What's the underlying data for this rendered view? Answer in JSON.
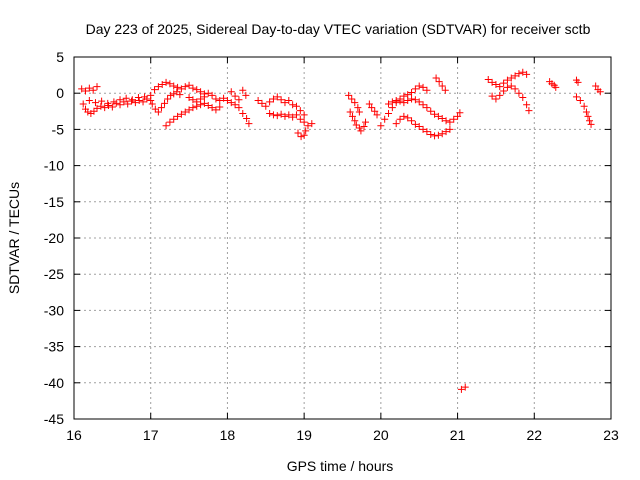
{
  "chart_data": {
    "type": "scatter",
    "title": "Day 223 of 2025, Sidereal Day-to-day VTEC variation (SDTVAR) for receiver sctb",
    "xlabel": "GPS time / hours",
    "ylabel": "SDTVAR / TECUs",
    "xlim": [
      16,
      23
    ],
    "ylim": [
      -45,
      5
    ],
    "xticks": [
      16,
      17,
      18,
      19,
      20,
      21,
      22,
      23
    ],
    "yticks": [
      5,
      0,
      -5,
      -10,
      -15,
      -20,
      -25,
      -30,
      -35,
      -40,
      -45
    ],
    "grid": true,
    "marker": "+",
    "color": "#ff0000",
    "series": [
      {
        "name": "SDTVAR",
        "points": [
          [
            16.1,
            0.6
          ],
          [
            16.15,
            0.3
          ],
          [
            16.2,
            0.7
          ],
          [
            16.25,
            0.4
          ],
          [
            16.3,
            0.9
          ],
          [
            16.12,
            -1.5
          ],
          [
            16.15,
            -2.2
          ],
          [
            16.18,
            -2.6
          ],
          [
            16.22,
            -2.8
          ],
          [
            16.26,
            -2.5
          ],
          [
            16.3,
            -2.1
          ],
          [
            16.35,
            -1.8
          ],
          [
            16.4,
            -2.0
          ],
          [
            16.45,
            -1.7
          ],
          [
            16.5,
            -1.9
          ],
          [
            16.55,
            -1.4
          ],
          [
            16.6,
            -1.6
          ],
          [
            16.65,
            -1.2
          ],
          [
            16.7,
            -1.5
          ],
          [
            16.75,
            -1.1
          ],
          [
            16.8,
            -1.3
          ],
          [
            16.85,
            -1.0
          ],
          [
            16.9,
            -1.2
          ],
          [
            16.95,
            -0.8
          ],
          [
            17.0,
            -1.0
          ],
          [
            16.2,
            -1.0
          ],
          [
            16.28,
            -1.3
          ],
          [
            16.36,
            -1.1
          ],
          [
            16.44,
            -1.4
          ],
          [
            16.52,
            -1.2
          ],
          [
            16.6,
            -0.9
          ],
          [
            16.68,
            -0.7
          ],
          [
            16.76,
            -0.9
          ],
          [
            16.84,
            -0.6
          ],
          [
            16.92,
            -0.5
          ],
          [
            17.0,
            -0.3
          ],
          [
            17.05,
            0.5
          ],
          [
            17.1,
            0.9
          ],
          [
            17.15,
            1.2
          ],
          [
            17.2,
            1.5
          ],
          [
            17.25,
            1.3
          ],
          [
            17.3,
            1.0
          ],
          [
            17.35,
            0.8
          ],
          [
            17.4,
            0.6
          ],
          [
            17.45,
            0.9
          ],
          [
            17.5,
            1.1
          ],
          [
            17.55,
            0.7
          ],
          [
            17.6,
            0.5
          ],
          [
            17.65,
            0.2
          ],
          [
            17.7,
            -0.1
          ],
          [
            17.02,
            -1.5
          ],
          [
            17.06,
            -2.2
          ],
          [
            17.1,
            -2.6
          ],
          [
            17.14,
            -2.0
          ],
          [
            17.18,
            -1.4
          ],
          [
            17.22,
            -0.8
          ],
          [
            17.26,
            -0.3
          ],
          [
            17.3,
            -0.1
          ],
          [
            17.34,
            0.2
          ],
          [
            17.38,
            -0.2
          ],
          [
            17.2,
            -4.5
          ],
          [
            17.25,
            -4.0
          ],
          [
            17.3,
            -3.6
          ],
          [
            17.35,
            -3.2
          ],
          [
            17.4,
            -2.9
          ],
          [
            17.45,
            -2.6
          ],
          [
            17.5,
            -2.3
          ],
          [
            17.55,
            -2.0
          ],
          [
            17.6,
            -1.8
          ],
          [
            17.65,
            -1.6
          ],
          [
            17.7,
            -1.4
          ],
          [
            17.75,
            -1.7
          ],
          [
            17.8,
            -2.0
          ],
          [
            17.85,
            -2.3
          ],
          [
            17.9,
            -1.9
          ],
          [
            17.5,
            -0.6
          ],
          [
            17.55,
            -0.9
          ],
          [
            17.6,
            -1.2
          ],
          [
            17.65,
            -0.8
          ],
          [
            17.7,
            -0.5
          ],
          [
            17.75,
            0.0
          ],
          [
            17.8,
            -0.3
          ],
          [
            17.85,
            -0.8
          ],
          [
            17.9,
            -1.0
          ],
          [
            17.95,
            -0.7
          ],
          [
            18.0,
            -1.0
          ],
          [
            18.05,
            -1.3
          ],
          [
            18.1,
            -1.6
          ],
          [
            18.15,
            -2.0
          ],
          [
            18.2,
            -2.8
          ],
          [
            18.25,
            -3.5
          ],
          [
            18.28,
            -4.2
          ],
          [
            18.05,
            0.2
          ],
          [
            18.1,
            -0.4
          ],
          [
            18.15,
            -0.9
          ],
          [
            18.2,
            0.4
          ],
          [
            18.24,
            -0.3
          ],
          [
            18.4,
            -1.0
          ],
          [
            18.45,
            -1.4
          ],
          [
            18.5,
            -1.8
          ],
          [
            18.55,
            -1.2
          ],
          [
            18.6,
            -0.8
          ],
          [
            18.65,
            -0.5
          ],
          [
            18.7,
            -0.9
          ],
          [
            18.75,
            -1.3
          ],
          [
            18.8,
            -1.0
          ],
          [
            18.85,
            -1.6
          ],
          [
            18.55,
            -2.8
          ],
          [
            18.6,
            -3.0
          ],
          [
            18.65,
            -3.1
          ],
          [
            18.7,
            -2.9
          ],
          [
            18.75,
            -3.2
          ],
          [
            18.8,
            -3.0
          ],
          [
            18.85,
            -3.3
          ],
          [
            18.9,
            -3.0
          ],
          [
            18.95,
            -3.6
          ],
          [
            19.0,
            -4.0
          ],
          [
            18.9,
            -1.8
          ],
          [
            18.95,
            -2.4
          ],
          [
            19.0,
            -3.0
          ],
          [
            19.05,
            -4.5
          ],
          [
            19.1,
            -4.2
          ],
          [
            18.92,
            -5.5
          ],
          [
            18.96,
            -6.0
          ],
          [
            19.0,
            -5.8
          ],
          [
            19.02,
            -5.2
          ],
          [
            19.58,
            -0.3
          ],
          [
            19.62,
            -0.8
          ],
          [
            19.66,
            -1.3
          ],
          [
            19.7,
            -2.0
          ],
          [
            19.72,
            -2.6
          ],
          [
            19.6,
            -2.6
          ],
          [
            19.63,
            -3.2
          ],
          [
            19.66,
            -3.8
          ],
          [
            19.68,
            -4.4
          ],
          [
            19.72,
            -4.8
          ],
          [
            19.74,
            -5.2
          ],
          [
            19.78,
            -4.6
          ],
          [
            19.8,
            -4.0
          ],
          [
            19.85,
            -1.5
          ],
          [
            19.88,
            -2.0
          ],
          [
            19.92,
            -2.5
          ],
          [
            19.95,
            -3.0
          ],
          [
            20.0,
            -4.5
          ],
          [
            20.05,
            -3.6
          ],
          [
            20.1,
            -2.8
          ],
          [
            20.15,
            -2.0
          ],
          [
            20.2,
            -1.3
          ],
          [
            20.25,
            -0.8
          ],
          [
            20.3,
            -0.4
          ],
          [
            20.35,
            -0.2
          ],
          [
            20.4,
            0.1
          ],
          [
            20.45,
            0.6
          ],
          [
            20.5,
            1.0
          ],
          [
            20.55,
            0.8
          ],
          [
            20.6,
            0.4
          ],
          [
            20.2,
            -4.2
          ],
          [
            20.25,
            -3.6
          ],
          [
            20.3,
            -3.2
          ],
          [
            20.35,
            -3.4
          ],
          [
            20.4,
            -3.8
          ],
          [
            20.45,
            -4.3
          ],
          [
            20.5,
            -4.6
          ],
          [
            20.55,
            -5.0
          ],
          [
            20.6,
            -5.3
          ],
          [
            20.65,
            -5.7
          ],
          [
            20.7,
            -5.9
          ],
          [
            20.75,
            -5.8
          ],
          [
            20.8,
            -5.6
          ],
          [
            20.85,
            -5.3
          ],
          [
            20.9,
            -5.0
          ],
          [
            20.1,
            -1.5
          ],
          [
            20.15,
            -1.2
          ],
          [
            20.2,
            -1.0
          ],
          [
            20.25,
            -1.1
          ],
          [
            20.3,
            -1.3
          ],
          [
            20.35,
            -1.0
          ],
          [
            20.4,
            -0.8
          ],
          [
            20.45,
            -0.9
          ],
          [
            20.5,
            -1.2
          ],
          [
            20.55,
            -1.6
          ],
          [
            20.6,
            -2.0
          ],
          [
            20.65,
            -2.5
          ],
          [
            20.7,
            -2.9
          ],
          [
            20.75,
            -3.2
          ],
          [
            20.8,
            -3.5
          ],
          [
            20.85,
            -3.8
          ],
          [
            20.9,
            -4.0
          ],
          [
            20.95,
            -3.6
          ],
          [
            21.0,
            -3.2
          ],
          [
            21.03,
            -2.7
          ],
          [
            20.72,
            2.1
          ],
          [
            20.76,
            1.6
          ],
          [
            20.8,
            1.0
          ],
          [
            20.84,
            0.4
          ],
          [
            21.05,
            -40.9
          ],
          [
            21.1,
            -40.6
          ],
          [
            21.4,
            1.9
          ],
          [
            21.45,
            1.5
          ],
          [
            21.5,
            1.2
          ],
          [
            21.55,
            0.9
          ],
          [
            21.6,
            1.4
          ],
          [
            21.65,
            1.8
          ],
          [
            21.7,
            2.1
          ],
          [
            21.75,
            2.4
          ],
          [
            21.8,
            2.7
          ],
          [
            21.85,
            2.9
          ],
          [
            21.9,
            2.6
          ],
          [
            21.45,
            -0.4
          ],
          [
            21.5,
            -0.8
          ],
          [
            21.55,
            -0.3
          ],
          [
            21.6,
            0.3
          ],
          [
            21.65,
            0.8
          ],
          [
            21.7,
            1.0
          ],
          [
            21.75,
            0.6
          ],
          [
            21.8,
            0.0
          ],
          [
            21.85,
            -0.6
          ],
          [
            21.9,
            -1.6
          ],
          [
            21.93,
            -2.4
          ],
          [
            22.2,
            1.6
          ],
          [
            22.23,
            1.3
          ],
          [
            22.26,
            1.1
          ],
          [
            22.28,
            0.8
          ],
          [
            22.55,
            1.8
          ],
          [
            22.57,
            1.5
          ],
          [
            22.55,
            -0.5
          ],
          [
            22.6,
            -1.0
          ],
          [
            22.65,
            -1.8
          ],
          [
            22.68,
            -2.6
          ],
          [
            22.7,
            -3.2
          ],
          [
            22.72,
            -3.8
          ],
          [
            22.74,
            -4.3
          ],
          [
            22.8,
            1.0
          ],
          [
            22.83,
            0.5
          ],
          [
            22.86,
            0.2
          ]
        ]
      }
    ]
  }
}
